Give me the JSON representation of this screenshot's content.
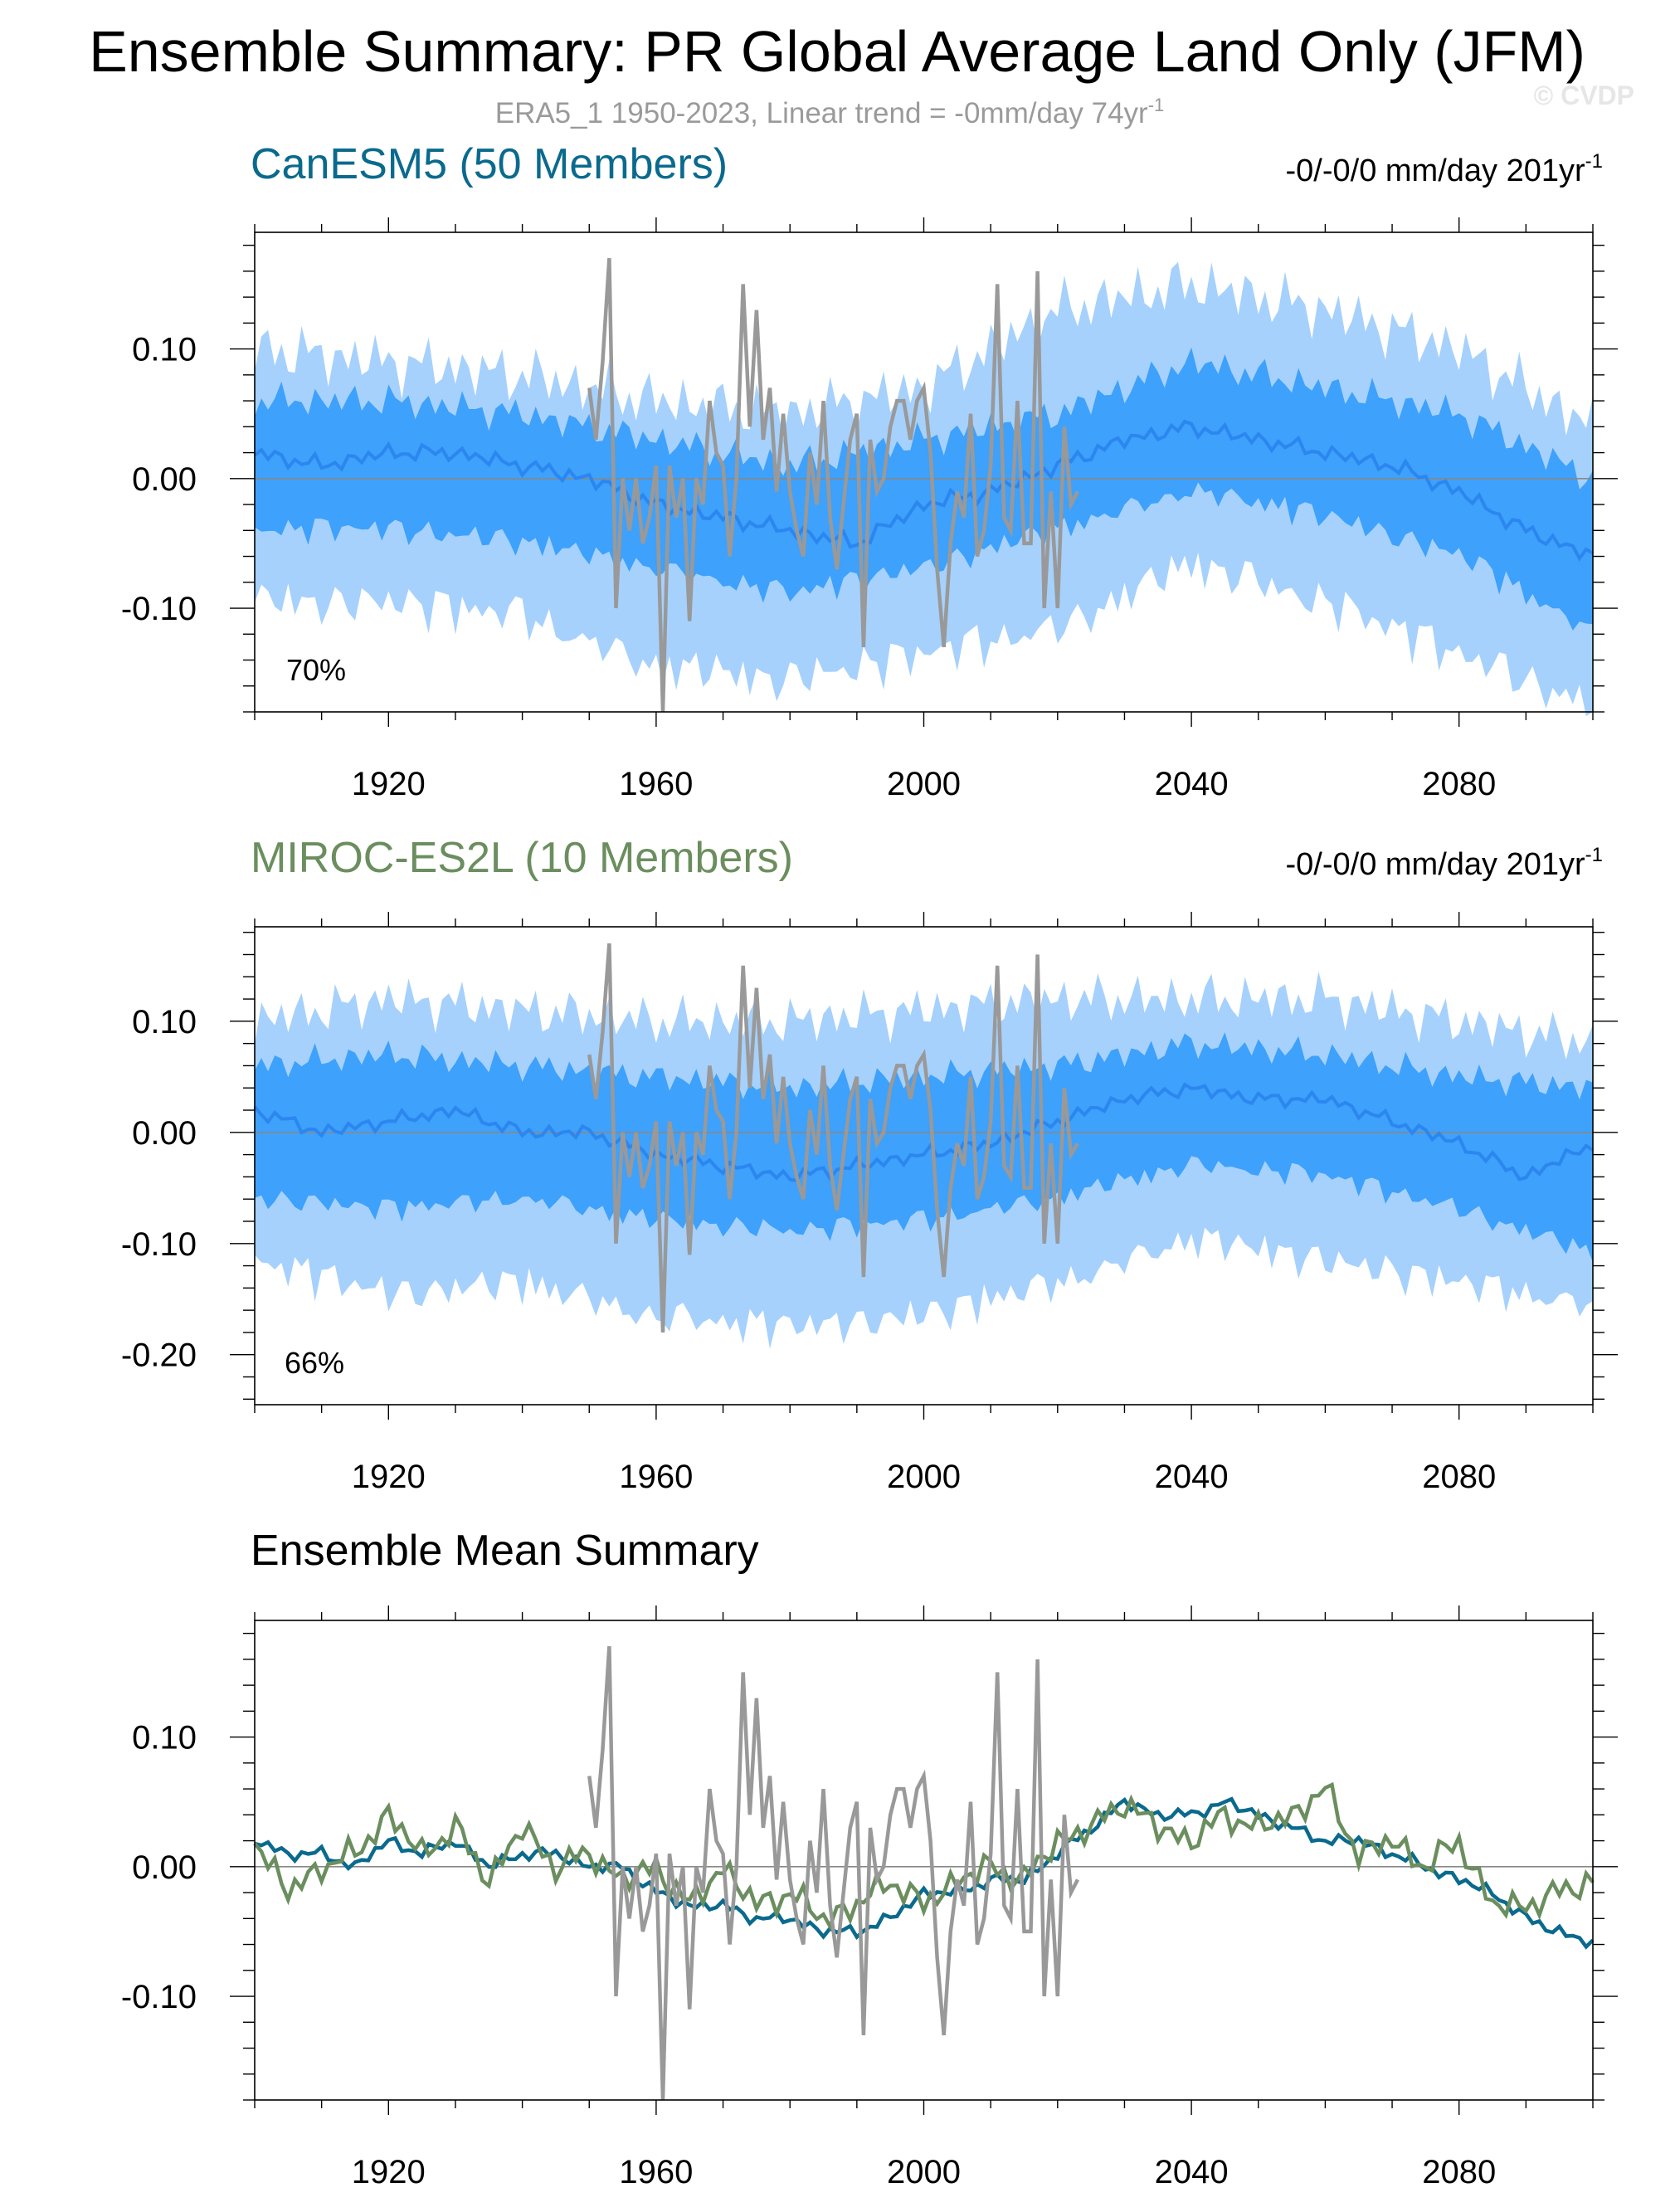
{
  "title": "Ensemble Summary: PR Global Average Land Only (JFM)",
  "subtitle": "ERA5_1 1950-2023, Linear trend = -0mm/day 74yr",
  "subtitle_sup": "-1",
  "watermark": "© CVDP",
  "colors": {
    "obs": "#999999",
    "band_outer": "#a6d1fc",
    "band_inner": "#3ea1fb",
    "ens_mean_line": "#2c86f0",
    "canesm5": "#0a6a8d",
    "miroc": "#6b8e5e",
    "zero_line": "#888888"
  },
  "chart_data": [
    {
      "type": "area",
      "panel": "canesm5",
      "model_label": "CanESM5 (50 Members)",
      "trend_label": "-0/-0/0 mm/day 201yr",
      "trend_sup": "-1",
      "percent_label": "70%",
      "xticks": [
        "1920",
        "1960",
        "2000",
        "2040",
        "2080"
      ],
      "yticks": [
        "0.10",
        "0.00",
        "-0.10"
      ],
      "xlim": [
        1900,
        2100
      ],
      "ylim": [
        -0.18,
        0.19
      ],
      "series": [
        {
          "role": "mean",
          "x": [
            1900,
            1910,
            1920,
            1930,
            1940,
            1950,
            1960,
            1970,
            1980,
            1990,
            2000,
            2010,
            2020,
            2030,
            2040,
            2050,
            2060,
            2070,
            2080,
            2090,
            2100
          ],
          "values": [
            0.02,
            0.01,
            0.02,
            0.02,
            0.01,
            0.0,
            -0.02,
            -0.03,
            -0.04,
            -0.05,
            -0.02,
            -0.01,
            0.01,
            0.03,
            0.04,
            0.03,
            0.02,
            0.01,
            -0.01,
            -0.04,
            -0.06
          ]
        },
        {
          "role": "inner-band-upper",
          "x": [
            1900,
            1920,
            1940,
            1960,
            1980,
            2000,
            2020,
            2040,
            2060,
            2080,
            2100
          ],
          "values": [
            0.06,
            0.06,
            0.05,
            0.03,
            0.01,
            0.03,
            0.05,
            0.09,
            0.07,
            0.05,
            0.0
          ]
        },
        {
          "role": "inner-band-lower",
          "x": [
            1900,
            1920,
            1940,
            1960,
            1980,
            2000,
            2020,
            2040,
            2060,
            2080,
            2100
          ],
          "values": [
            -0.03,
            -0.03,
            -0.04,
            -0.06,
            -0.08,
            -0.06,
            -0.03,
            0.0,
            -0.02,
            -0.05,
            -0.11
          ]
        },
        {
          "role": "outer-band-upper",
          "x": [
            1900,
            1920,
            1940,
            1960,
            1980,
            2000,
            2020,
            2040,
            2060,
            2080,
            2100
          ],
          "values": [
            0.1,
            0.09,
            0.08,
            0.06,
            0.05,
            0.07,
            0.13,
            0.15,
            0.13,
            0.1,
            0.04
          ]
        },
        {
          "role": "outer-band-lower",
          "x": [
            1900,
            1920,
            1940,
            1960,
            1980,
            2000,
            2020,
            2040,
            2060,
            2080,
            2100
          ],
          "values": [
            -0.08,
            -0.08,
            -0.09,
            -0.13,
            -0.14,
            -0.12,
            -0.1,
            -0.05,
            -0.08,
            -0.12,
            -0.16
          ]
        },
        {
          "role": "obs",
          "x": [
            1950,
            1951,
            1952,
            1953,
            1954,
            1955,
            1956,
            1957,
            1958,
            1959,
            1960,
            1961,
            1962,
            1963,
            1964,
            1965,
            1966,
            1967,
            1968,
            1969,
            1970,
            1971,
            1972,
            1973,
            1974,
            1975,
            1976,
            1977,
            1978,
            1979,
            1980,
            1981,
            1982,
            1983,
            1984,
            1985,
            1986,
            1987,
            1988,
            1989,
            1990,
            1991,
            1992,
            1993,
            1994,
            1995,
            1996,
            1997,
            1998,
            1999,
            2000,
            2001,
            2002,
            2003,
            2004,
            2005,
            2006,
            2007,
            2008,
            2009,
            2010,
            2011,
            2012,
            2013,
            2014,
            2015,
            2016,
            2017,
            2018,
            2019,
            2020,
            2021,
            2022,
            2023
          ],
          "values": [
            0.07,
            0.03,
            0.09,
            0.17,
            -0.1,
            0.0,
            -0.04,
            0.0,
            -0.05,
            -0.03,
            0.01,
            -0.18,
            0.01,
            -0.03,
            0.0,
            -0.11,
            0.0,
            -0.02,
            0.06,
            0.02,
            0.01,
            -0.06,
            0.0,
            0.15,
            0.04,
            0.13,
            0.03,
            0.07,
            -0.01,
            0.05,
            -0.01,
            -0.04,
            -0.06,
            0.02,
            -0.02,
            0.06,
            -0.03,
            -0.07,
            -0.02,
            0.03,
            0.05,
            -0.13,
            0.03,
            -0.01,
            0.0,
            0.04,
            0.06,
            0.06,
            0.03,
            0.06,
            0.07,
            0.02,
            -0.07,
            -0.13,
            -0.05,
            -0.01,
            -0.03,
            0.05,
            -0.06,
            -0.04,
            0.01,
            0.15,
            -0.03,
            -0.04,
            0.06,
            -0.05,
            -0.05,
            0.16,
            -0.1,
            -0.01,
            -0.1,
            0.04,
            -0.02,
            -0.01
          ]
        }
      ]
    },
    {
      "type": "area",
      "panel": "miroc",
      "model_label": "MIROC-ES2L (10 Members)",
      "trend_label": "-0/-0/0 mm/day 201yr",
      "trend_sup": "-1",
      "percent_label": "66%",
      "xticks": [
        "1920",
        "1960",
        "2000",
        "2040",
        "2080"
      ],
      "yticks": [
        "0.10",
        "0.00",
        "-0.10",
        "-0.20"
      ],
      "xlim": [
        1900,
        2100
      ],
      "ylim": [
        -0.245,
        0.185
      ],
      "series": [
        {
          "role": "mean",
          "x": [
            1900,
            1910,
            1920,
            1930,
            1940,
            1950,
            1960,
            1970,
            1980,
            1990,
            2000,
            2010,
            2020,
            2030,
            2040,
            2050,
            2060,
            2070,
            2080,
            2090,
            2100
          ],
          "values": [
            0.02,
            0.0,
            0.01,
            0.02,
            0.0,
            0.0,
            -0.02,
            -0.03,
            -0.04,
            -0.03,
            -0.02,
            -0.01,
            0.01,
            0.03,
            0.04,
            0.03,
            0.03,
            0.01,
            -0.01,
            -0.04,
            -0.01
          ]
        },
        {
          "role": "inner-band-upper",
          "x": [
            1900,
            1920,
            1940,
            1960,
            1980,
            2000,
            2020,
            2040,
            2060,
            2080,
            2100
          ],
          "values": [
            0.06,
            0.07,
            0.06,
            0.05,
            0.04,
            0.05,
            0.06,
            0.08,
            0.07,
            0.05,
            0.04
          ]
        },
        {
          "role": "inner-band-lower",
          "x": [
            1900,
            1920,
            1940,
            1960,
            1980,
            2000,
            2020,
            2040,
            2060,
            2080,
            2100
          ],
          "values": [
            -0.05,
            -0.06,
            -0.05,
            -0.07,
            -0.08,
            -0.07,
            -0.05,
            -0.02,
            -0.03,
            -0.06,
            -0.1
          ]
        },
        {
          "role": "outer-band-upper",
          "x": [
            1900,
            1920,
            1940,
            1960,
            1980,
            2000,
            2020,
            2040,
            2060,
            2080,
            2100
          ],
          "values": [
            0.1,
            0.12,
            0.11,
            0.1,
            0.1,
            0.11,
            0.12,
            0.12,
            0.12,
            0.1,
            0.08
          ]
        },
        {
          "role": "outer-band-lower",
          "x": [
            1900,
            1920,
            1940,
            1960,
            1980,
            2000,
            2020,
            2040,
            2060,
            2080,
            2100
          ],
          "values": [
            -0.1,
            -0.13,
            -0.12,
            -0.15,
            -0.16,
            -0.15,
            -0.12,
            -0.08,
            -0.1,
            -0.12,
            -0.14
          ]
        },
        {
          "role": "obs",
          "x": [
            1950,
            1951,
            1952,
            1953,
            1954,
            1955,
            1956,
            1957,
            1958,
            1959,
            1960,
            1961,
            1962,
            1963,
            1964,
            1965,
            1966,
            1967,
            1968,
            1969,
            1970,
            1971,
            1972,
            1973,
            1974,
            1975,
            1976,
            1977,
            1978,
            1979,
            1980,
            1981,
            1982,
            1983,
            1984,
            1985,
            1986,
            1987,
            1988,
            1989,
            1990,
            1991,
            1992,
            1993,
            1994,
            1995,
            1996,
            1997,
            1998,
            1999,
            2000,
            2001,
            2002,
            2003,
            2004,
            2005,
            2006,
            2007,
            2008,
            2009,
            2010,
            2011,
            2012,
            2013,
            2014,
            2015,
            2016,
            2017,
            2018,
            2019,
            2020,
            2021,
            2022,
            2023
          ],
          "values": [
            0.07,
            0.03,
            0.09,
            0.17,
            -0.1,
            0.0,
            -0.04,
            0.0,
            -0.05,
            -0.03,
            0.01,
            -0.18,
            0.01,
            -0.03,
            0.0,
            -0.11,
            0.0,
            -0.02,
            0.06,
            0.02,
            0.01,
            -0.06,
            0.0,
            0.15,
            0.04,
            0.13,
            0.03,
            0.07,
            -0.01,
            0.05,
            -0.01,
            -0.04,
            -0.06,
            0.02,
            -0.02,
            0.06,
            -0.03,
            -0.07,
            -0.02,
            0.03,
            0.05,
            -0.13,
            0.03,
            -0.01,
            0.0,
            0.04,
            0.06,
            0.06,
            0.03,
            0.06,
            0.07,
            0.02,
            -0.07,
            -0.13,
            -0.05,
            -0.01,
            -0.03,
            0.05,
            -0.06,
            -0.04,
            0.01,
            0.15,
            -0.03,
            -0.04,
            0.06,
            -0.05,
            -0.05,
            0.16,
            -0.1,
            -0.01,
            -0.1,
            0.04,
            -0.02,
            -0.01
          ]
        }
      ]
    },
    {
      "type": "line",
      "panel": "mean-summary",
      "panel_title": "Ensemble Mean Summary",
      "xticks": [
        "1920",
        "1960",
        "2000",
        "2040",
        "2080"
      ],
      "yticks": [
        "0.10",
        "0.00",
        "-0.10"
      ],
      "xlim": [
        1900,
        2100
      ],
      "ylim": [
        -0.18,
        0.19
      ],
      "series": [
        {
          "role": "canesm5-mean",
          "x": [
            1900,
            1905,
            1910,
            1915,
            1920,
            1925,
            1930,
            1935,
            1940,
            1945,
            1950,
            1955,
            1960,
            1965,
            1970,
            1975,
            1980,
            1985,
            1990,
            1995,
            2000,
            2005,
            2010,
            2015,
            2020,
            2025,
            2030,
            2035,
            2040,
            2045,
            2050,
            2055,
            2060,
            2065,
            2070,
            2075,
            2080,
            2085,
            2090,
            2095,
            2100
          ],
          "values": [
            0.02,
            0.01,
            0.01,
            0.0,
            0.02,
            0.01,
            0.02,
            0.0,
            0.01,
            0.01,
            0.0,
            0.0,
            -0.02,
            -0.03,
            -0.03,
            -0.04,
            -0.04,
            -0.05,
            -0.05,
            -0.04,
            -0.02,
            -0.02,
            -0.01,
            -0.01,
            0.01,
            0.03,
            0.05,
            0.04,
            0.04,
            0.05,
            0.04,
            0.03,
            0.02,
            0.02,
            0.01,
            0.0,
            -0.01,
            -0.02,
            -0.04,
            -0.05,
            -0.06
          ]
        },
        {
          "role": "miroc-mean",
          "x": [
            1900,
            1905,
            1910,
            1915,
            1920,
            1925,
            1930,
            1935,
            1940,
            1945,
            1950,
            1955,
            1960,
            1965,
            1970,
            1975,
            1980,
            1985,
            1990,
            1995,
            2000,
            2005,
            2010,
            2015,
            2020,
            2025,
            2030,
            2035,
            2040,
            2045,
            2050,
            2055,
            2060,
            2065,
            2070,
            2075,
            2080,
            2085,
            2090,
            2095,
            2100
          ],
          "values": [
            0.02,
            -0.02,
            0.0,
            0.01,
            0.04,
            0.01,
            0.03,
            -0.01,
            0.03,
            0.0,
            0.01,
            -0.01,
            0.0,
            -0.03,
            0.0,
            -0.03,
            -0.02,
            -0.04,
            -0.03,
            -0.01,
            -0.03,
            -0.01,
            0.0,
            -0.01,
            0.02,
            0.03,
            0.05,
            0.03,
            0.02,
            0.04,
            0.03,
            0.04,
            0.06,
            0.01,
            0.02,
            0.0,
            0.02,
            -0.03,
            -0.03,
            -0.02,
            -0.01
          ]
        },
        {
          "role": "obs",
          "x": [
            1950,
            1951,
            1952,
            1953,
            1954,
            1955,
            1956,
            1957,
            1958,
            1959,
            1960,
            1961,
            1962,
            1963,
            1964,
            1965,
            1966,
            1967,
            1968,
            1969,
            1970,
            1971,
            1972,
            1973,
            1974,
            1975,
            1976,
            1977,
            1978,
            1979,
            1980,
            1981,
            1982,
            1983,
            1984,
            1985,
            1986,
            1987,
            1988,
            1989,
            1990,
            1991,
            1992,
            1993,
            1994,
            1995,
            1996,
            1997,
            1998,
            1999,
            2000,
            2001,
            2002,
            2003,
            2004,
            2005,
            2006,
            2007,
            2008,
            2009,
            2010,
            2011,
            2012,
            2013,
            2014,
            2015,
            2016,
            2017,
            2018,
            2019,
            2020,
            2021,
            2022,
            2023
          ],
          "values": [
            0.07,
            0.03,
            0.09,
            0.17,
            -0.1,
            0.0,
            -0.04,
            0.0,
            -0.05,
            -0.03,
            0.01,
            -0.18,
            0.01,
            -0.03,
            0.0,
            -0.11,
            0.0,
            -0.02,
            0.06,
            0.02,
            0.01,
            -0.06,
            0.0,
            0.15,
            0.04,
            0.13,
            0.03,
            0.07,
            -0.01,
            0.05,
            -0.01,
            -0.04,
            -0.06,
            0.02,
            -0.02,
            0.06,
            -0.03,
            -0.07,
            -0.02,
            0.03,
            0.05,
            -0.13,
            0.03,
            -0.01,
            0.0,
            0.04,
            0.06,
            0.06,
            0.03,
            0.06,
            0.07,
            0.02,
            -0.07,
            -0.13,
            -0.05,
            -0.01,
            -0.03,
            0.05,
            -0.06,
            -0.04,
            0.01,
            0.15,
            -0.03,
            -0.04,
            0.06,
            -0.05,
            -0.05,
            0.16,
            -0.1,
            -0.01,
            -0.1,
            0.04,
            -0.02,
            -0.01
          ]
        }
      ]
    }
  ]
}
